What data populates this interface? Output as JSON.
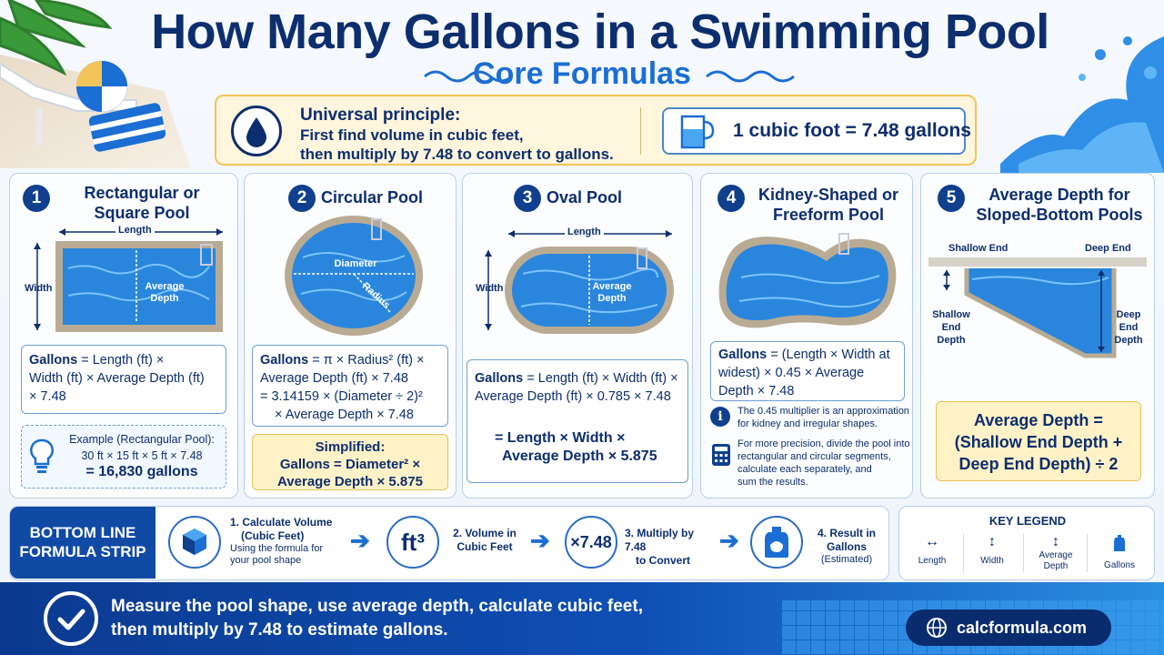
{
  "title": "How Many Gallons in a Swimming Pool",
  "subtitle": "Core Formulas",
  "principle": {
    "title": "Universal principle:",
    "line1": "First find volume in cubic feet,",
    "line2": "then multiply by 7.48 to convert to gallons.",
    "conversion": "1 cubic foot = 7.48 gallons"
  },
  "panels": [
    {
      "num": "1",
      "title1": "Rectangular or",
      "title2": "Square Pool",
      "labels": {
        "length": "Length",
        "width": "Width",
        "depth1": "Average",
        "depth2": "Depth"
      },
      "formula": {
        "bold": "Gallons",
        "rest1": " = Length (ft) ×",
        "line2": "Width (ft) × Average Depth (ft)",
        "line3": "× 7.48"
      },
      "example": {
        "line1": "Example (Rectangular Pool):",
        "line2": "30 ft × 15 ft × 5 ft × 7.48",
        "line3": "= 16,830 gallons"
      }
    },
    {
      "num": "2",
      "title1": "Circular Pool",
      "labels": {
        "diameter": "Diameter",
        "radius": "Radius"
      },
      "formula": {
        "bold": "Gallons",
        "rest1": " = π × Radius² (ft) ×",
        "line2": "Average Depth (ft) × 7.48",
        "line3": "= 3.14159 × (Diameter ÷ 2)²",
        "line4": "× Average Depth × 7.48"
      },
      "simplified": {
        "line1": "Simplified:",
        "line2": "Gallons = Diameter² ×",
        "line3": "Average Depth × 5.875"
      }
    },
    {
      "num": "3",
      "title1": "Oval Pool",
      "labels": {
        "length": "Length",
        "width": "Width",
        "depth1": "Average",
        "depth2": "Depth"
      },
      "formula": {
        "bold": "Gallons",
        "rest1": " = Length (ft) × Width (ft) ×",
        "line2": "Average Depth (ft) × 0.785 × 7.48",
        "line3": "= Length × Width ×",
        "line4": "Average Depth × 5.875"
      }
    },
    {
      "num": "4",
      "title1": "Kidney-Shaped or",
      "title2": "Freeform Pool",
      "formula": {
        "bold": "Gallons",
        "rest1": " = (Length × Width at",
        "line2": "widest) ×  0.45 × Average",
        "line3": "Depth × 7.48"
      },
      "note1": {
        "line1": "The 0.45 multiplier is an approximation",
        "line2": "for kidney and irregular shapes."
      },
      "note2": {
        "line1": "For more precision, divide the pool into",
        "line2": "rectangular and circular segments,",
        "line3": "calculate each separately, and",
        "line4": "sum the results."
      }
    },
    {
      "num": "5",
      "title1": "Average Depth for",
      "title2": "Sloped-Bottom Pools",
      "labels": {
        "shallow": "Shallow End",
        "deep": "Deep End",
        "shallow_depth1": "Shallow",
        "shallow_depth2": "End",
        "shallow_depth3": "Depth",
        "deep_depth1": "Deep",
        "deep_depth2": "End",
        "deep_depth3": "Depth"
      },
      "formula": {
        "line1": "Average Depth =",
        "line2": "(Shallow End Depth +",
        "line3": "Deep End Depth) ÷ 2"
      }
    }
  ],
  "strip": {
    "label1": "BOTTOM LINE",
    "label2": "FORMULA STRIP",
    "steps": [
      {
        "title1": "1. Calculate Volume",
        "title2": "(Cubic Feet)",
        "sub1": "Using the formula for",
        "sub2": "your pool shape"
      },
      {
        "icon_text": "ft³",
        "title1": "2. Volume in",
        "title2": "Cubic Feet"
      },
      {
        "icon_text": "×7.48",
        "title1": "3. Multiply by 7.48",
        "title2": "to Convert"
      },
      {
        "title1": "4. Result in",
        "title2": "Gallons",
        "sub1": "(Estimated)"
      }
    ]
  },
  "legend": {
    "title": "KEY LEGEND",
    "items": [
      {
        "label1": "Length",
        "label2": ""
      },
      {
        "label1": "Width",
        "label2": ""
      },
      {
        "label1": "Average",
        "label2": "Depth"
      },
      {
        "label1": "Gallons",
        "label2": ""
      }
    ]
  },
  "footer": {
    "line1": "Measure the pool shape, use average depth, calculate cubic feet,",
    "line2": "then multiply by 7.48 to estimate gallons.",
    "site": "calcformula.com"
  },
  "colors": {
    "navy": "#0d2e6e",
    "accent": "#1b6ed3",
    "yellow": "#fff2c7",
    "water": "#1f7fd6"
  }
}
